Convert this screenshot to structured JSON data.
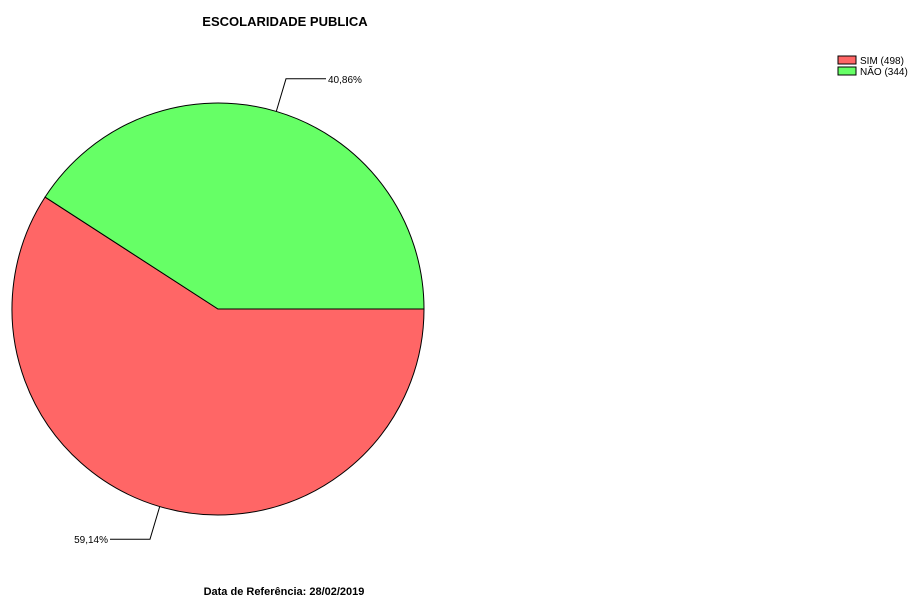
{
  "chart_data": {
    "type": "pie",
    "title": "ESCOLARIDADE PUBLICA",
    "slices": [
      {
        "label": "SIM",
        "count": 498,
        "legend": "SIM (498)",
        "percent": 59.14,
        "percent_label": "59,14%",
        "color": "#ff6666"
      },
      {
        "label": "NÃO",
        "count": 344,
        "legend": "NÃO (344)",
        "percent": 40.86,
        "percent_label": "40,86%",
        "color": "#66ff66"
      }
    ],
    "legend_position": "top-right",
    "footer": "Data de Referência: 28/02/2019"
  }
}
